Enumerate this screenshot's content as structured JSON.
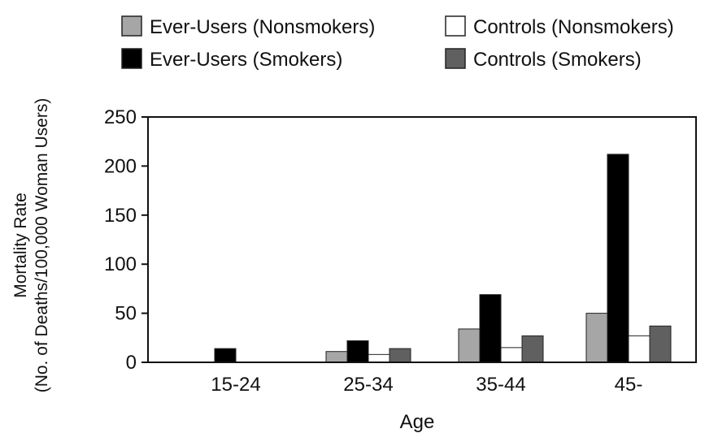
{
  "chart_data": {
    "type": "bar",
    "categories": [
      "15-24",
      "25-34",
      "35-44",
      "45-"
    ],
    "series": [
      {
        "name": "Ever-Users (Nonsmokers)",
        "color": "#a6a6a6",
        "values": [
          0,
          11,
          34,
          50
        ]
      },
      {
        "name": "Ever-Users (Smokers)",
        "color": "#000000",
        "values": [
          14,
          22,
          69,
          212
        ]
      },
      {
        "name": "Controls (Nonsmokers)",
        "color": "#ffffff",
        "values": [
          0,
          8,
          15,
          27
        ]
      },
      {
        "name": "Controls (Smokers)",
        "color": "#606060",
        "values": [
          0,
          14,
          27,
          37
        ]
      }
    ],
    "xlabel": "Age",
    "ylabel_line1": "Mortality Rate",
    "ylabel_line2": "(No. of Deaths/100,000 Woman Users)",
    "ylim": [
      0,
      250
    ],
    "yticks": [
      "0",
      "50",
      "100",
      "150",
      "200",
      "250"
    ],
    "grid": false,
    "legend_position": "top"
  }
}
